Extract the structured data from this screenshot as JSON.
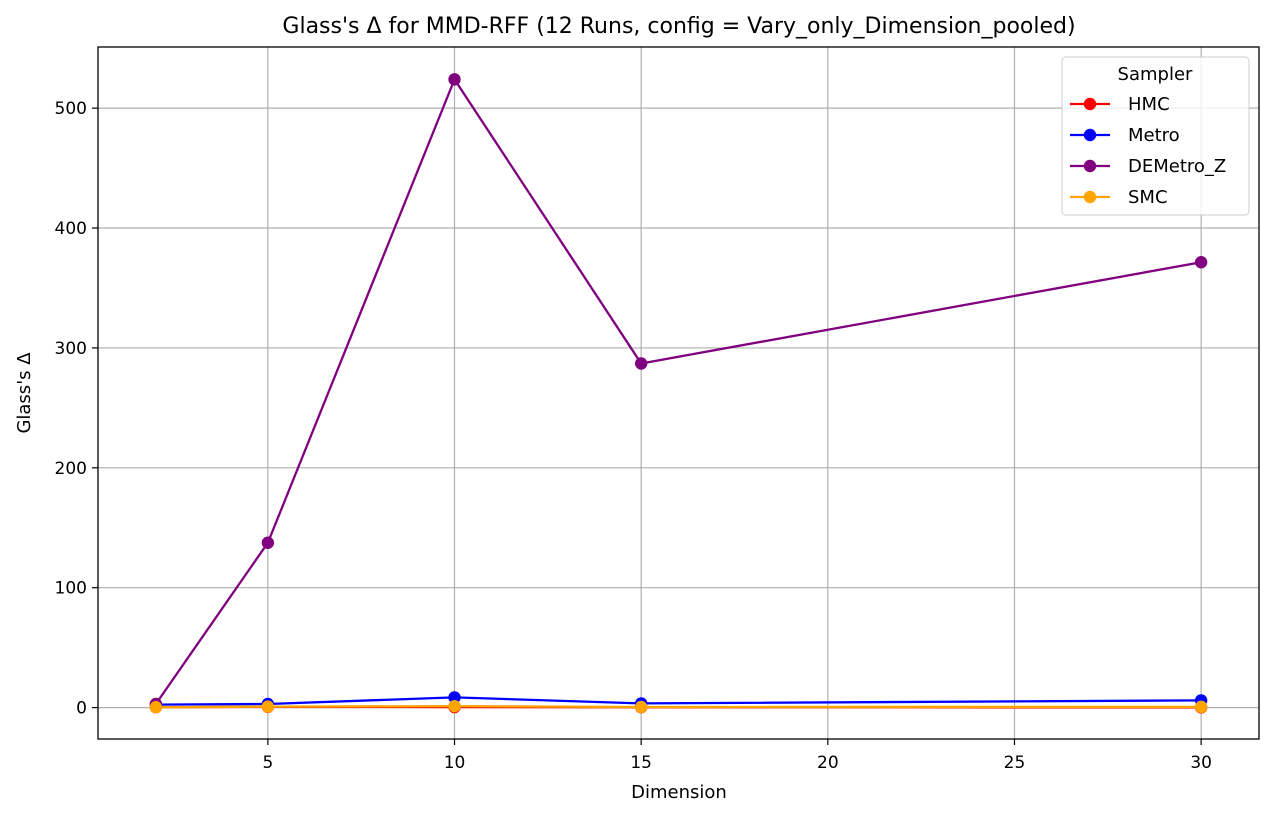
{
  "chart_data": {
    "type": "line",
    "title": "Glass's Δ for MMD-RFF (12 Runs, config = Vary_only_Dimension_pooled)",
    "xlabel": "Dimension",
    "ylabel": "Glass's Δ",
    "x": [
      2,
      5,
      10,
      15,
      30
    ],
    "xlim": [
      0.45,
      31.55
    ],
    "ylim": [
      -26.2,
      551.0
    ],
    "xticks": [
      5,
      10,
      15,
      20,
      25,
      30
    ],
    "yticks": [
      0,
      100,
      200,
      300,
      400,
      500
    ],
    "grid": true,
    "legend": {
      "title": "Sampler",
      "placement": "upper right"
    },
    "series": [
      {
        "name": "HMC",
        "color": "#ff0000",
        "values": [
          0.3,
          0.6,
          0.4,
          0.3,
          0.2
        ]
      },
      {
        "name": "Metro",
        "color": "#0000ff",
        "values": [
          2.5,
          3.0,
          8.5,
          3.5,
          6.0
        ]
      },
      {
        "name": "DEMetro_Z",
        "color": "#800080",
        "values": [
          3.0,
          137.5,
          524.0,
          287.0,
          371.5
        ]
      },
      {
        "name": "SMC",
        "color": "#ffa500",
        "values": [
          0.3,
          0.8,
          1.2,
          0.5,
          0.6
        ]
      }
    ]
  }
}
